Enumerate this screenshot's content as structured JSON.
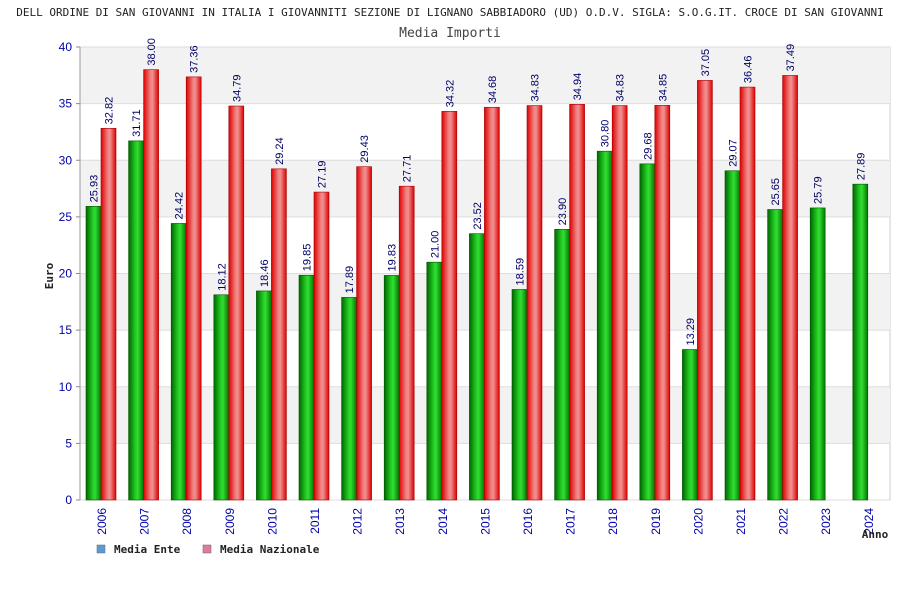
{
  "chart_data": {
    "type": "bar",
    "title": "DELL ORDINE DI SAN GIOVANNI IN ITALIA I GIOVANNITI SEZIONE DI LIGNANO SABBIADORO (UD) O.D.V. SIGLA: S.O.G.IT. CROCE DI SAN GIOVANNI",
    "subtitle": "Media Importi",
    "xlabel": "Anno",
    "ylabel": "Euro",
    "ylim": [
      0,
      40
    ],
    "yticks": [
      0,
      5,
      10,
      15,
      20,
      25,
      30,
      35,
      40
    ],
    "grid": true,
    "legend_position": "bottom-left",
    "categories": [
      "2006",
      "2007",
      "2008",
      "2009",
      "2010",
      "2011",
      "2012",
      "2013",
      "2014",
      "2015",
      "2016",
      "2017",
      "2018",
      "2019",
      "2020",
      "2021",
      "2022",
      "2023",
      "2024"
    ],
    "series": [
      {
        "name": "Media Ente",
        "color": "#00a800",
        "legend_color": "#5b9bd5",
        "values": [
          25.93,
          31.71,
          24.42,
          18.12,
          18.46,
          19.85,
          17.89,
          19.83,
          21.0,
          23.52,
          18.59,
          23.9,
          30.8,
          29.68,
          13.29,
          29.07,
          25.65,
          25.79,
          27.89
        ],
        "labels": [
          "25.93",
          "31.71",
          "24.42",
          "18.12",
          "18.46",
          "19.85",
          "17.89",
          "19.83",
          "21.00",
          "23.52",
          "18.59",
          "23.90",
          "30.80",
          "29.68",
          "13.29",
          "29.07",
          "25.65",
          "25.79",
          "27.89"
        ]
      },
      {
        "name": "Media Nazionale",
        "color": "#e01010",
        "legend_color": "#e07aa0",
        "values": [
          32.82,
          38.0,
          37.36,
          34.79,
          29.24,
          27.19,
          29.43,
          27.71,
          34.32,
          34.68,
          34.83,
          34.94,
          34.83,
          34.85,
          37.05,
          36.46,
          37.49,
          null,
          null
        ],
        "labels": [
          "32.82",
          "38.00",
          "37.36",
          "34.79",
          "29.24",
          "27.19",
          "29.43",
          "27.71",
          "34.32",
          "34.68",
          "34.83",
          "34.94",
          "34.83",
          "34.85",
          "37.05",
          "36.46",
          "37.49",
          "",
          ""
        ]
      }
    ]
  }
}
